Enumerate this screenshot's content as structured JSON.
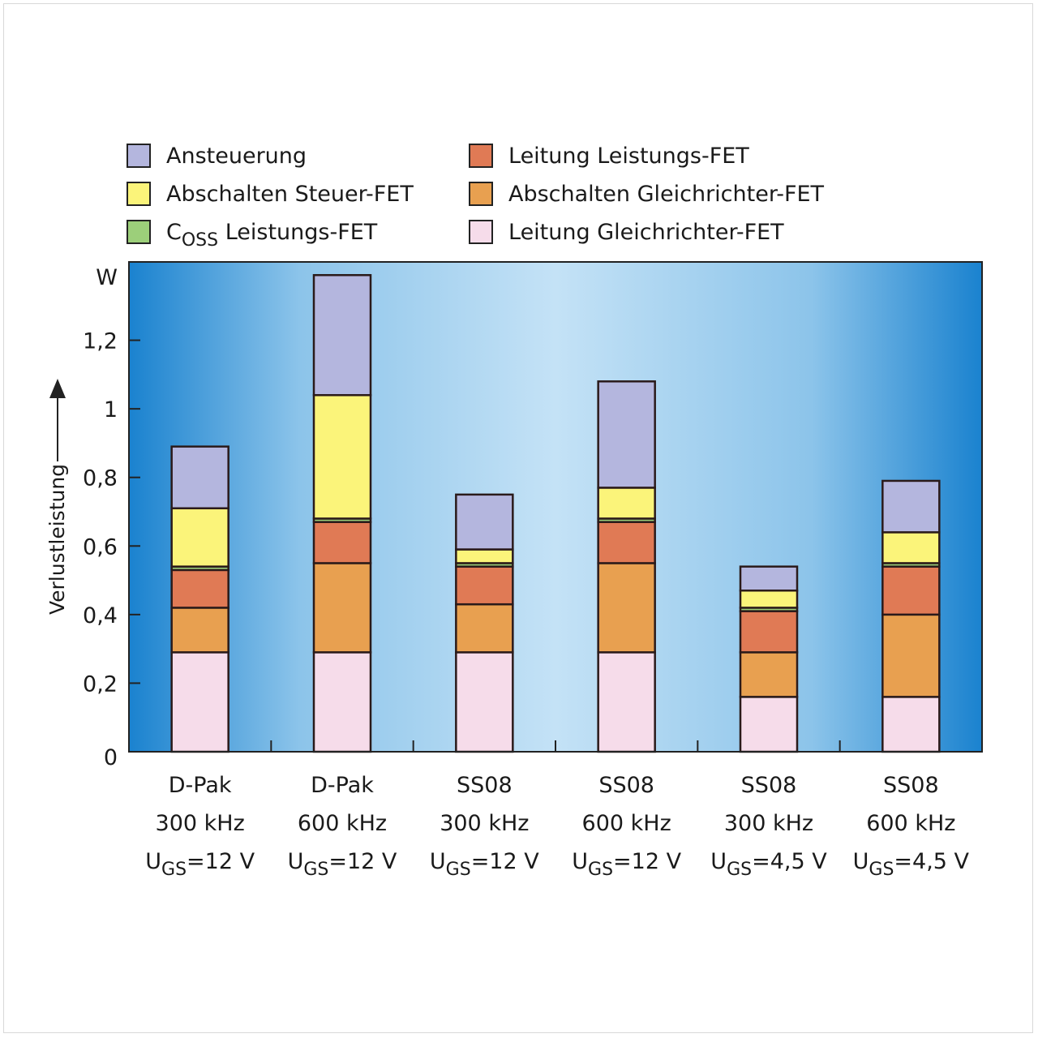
{
  "chart_data": {
    "type": "bar",
    "stacked": true,
    "ylabel": "Verlustleistung",
    "yunit": "W",
    "ylim": [
      0,
      1.4
    ],
    "yticks": [
      "0",
      "0,2",
      "0,4",
      "0,6",
      "0,8",
      "1",
      "1,2"
    ],
    "ytick_values": [
      0,
      0.2,
      0.4,
      0.6,
      0.8,
      1.0,
      1.2
    ],
    "categories": [
      [
        "D-Pak",
        "300 kHz",
        "U|GS|=12 V"
      ],
      [
        "D-Pak",
        "600 kHz",
        "U|GS|=12 V"
      ],
      [
        "SS08",
        "300 kHz",
        "U|GS|=12 V"
      ],
      [
        "SS08",
        "600 kHz",
        "U|GS|=12 V"
      ],
      [
        "SS08",
        "300 kHz",
        "U|GS|=4,5 V"
      ],
      [
        "SS08",
        "600 kHz",
        "U|GS|=4,5 V"
      ]
    ],
    "series": [
      {
        "name": "Leitung Gleichrichter-FET",
        "color": "#f6dcea",
        "values": [
          0.29,
          0.29,
          0.29,
          0.29,
          0.16,
          0.16
        ]
      },
      {
        "name": "Abschalten Gleichrichter-FET",
        "color": "#e8a050",
        "values": [
          0.13,
          0.26,
          0.14,
          0.26,
          0.13,
          0.24
        ]
      },
      {
        "name": "Leitung Leistungs-FET",
        "color": "#e07a55",
        "values": [
          0.11,
          0.12,
          0.11,
          0.12,
          0.12,
          0.14
        ]
      },
      {
        "name": "C|OSS| Leistungs-FET",
        "color": "#9ccf7a",
        "values": [
          0.01,
          0.01,
          0.01,
          0.01,
          0.01,
          0.01
        ]
      },
      {
        "name": "Abschalten Steuer-FET",
        "color": "#fbf47a",
        "values": [
          0.17,
          0.36,
          0.04,
          0.09,
          0.05,
          0.09
        ]
      },
      {
        "name": "Ansteuerung",
        "color": "#b4b6de",
        "values": [
          0.18,
          0.35,
          0.16,
          0.31,
          0.07,
          0.15
        ]
      }
    ],
    "legend": {
      "placement": "top",
      "order": [
        "Ansteuerung",
        "Abschalten Steuer-FET",
        "C|OSS| Leistungs-FET",
        "Leitung Leistungs-FET",
        "Abschalten Gleichrichter-FET",
        "Leitung Gleichrichter-FET"
      ]
    },
    "grid": false
  }
}
